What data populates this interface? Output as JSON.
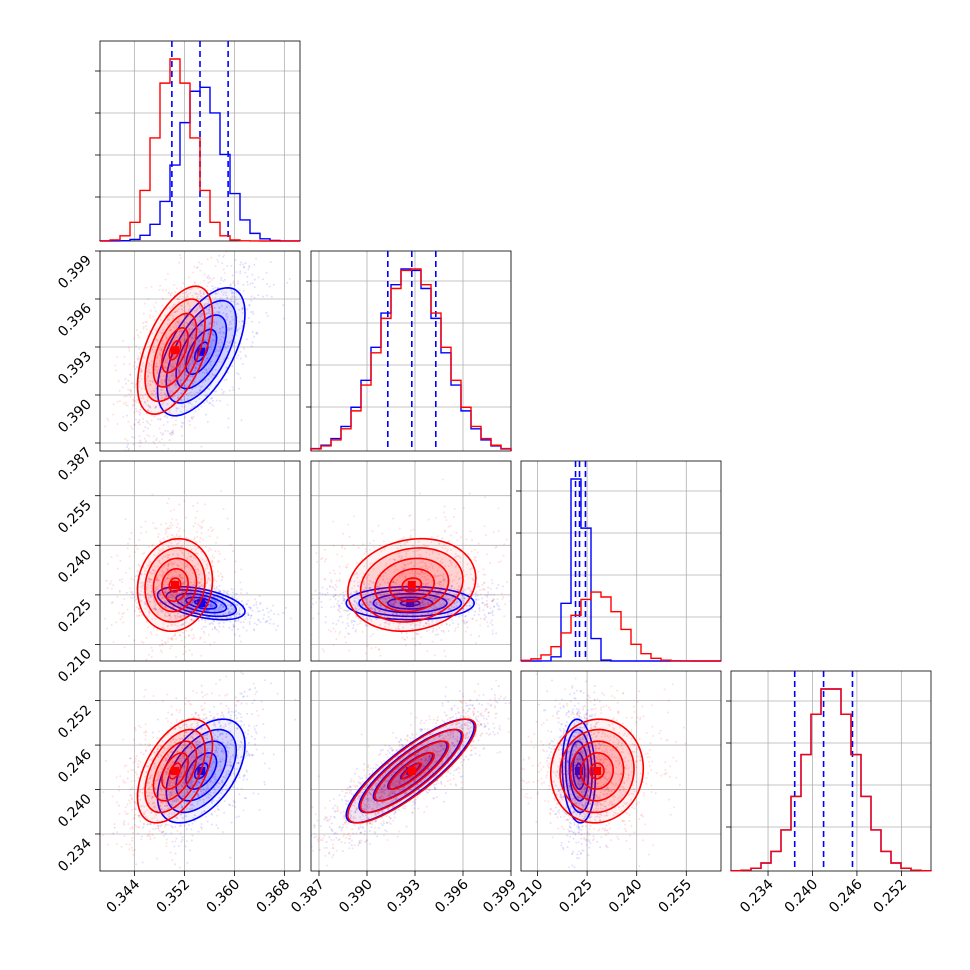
{
  "chart_data": {
    "type": "corner",
    "grid": true,
    "colors": {
      "series_a": "#0000ff",
      "series_b": "#ff0000",
      "quantile_line": "#0000ff"
    },
    "params": [
      {
        "ticks": [
          0.344,
          0.352,
          0.36,
          0.368
        ],
        "tick_labels": [
          "0.344",
          "0.352",
          "0.360",
          "0.368"
        ],
        "range": [
          0.3385,
          0.3705
        ]
      },
      {
        "ticks": [
          0.387,
          0.39,
          0.393,
          0.396,
          0.399
        ],
        "tick_labels": [
          "0.387",
          "0.390",
          "0.393",
          "0.396",
          "0.399"
        ],
        "range": [
          0.3865,
          0.399
        ]
      },
      {
        "ticks": [
          0.21,
          0.225,
          0.24,
          0.255
        ],
        "tick_labels": [
          "0.210",
          "0.225",
          "0.240",
          "0.255"
        ],
        "range": [
          0.205,
          0.2655
        ]
      },
      {
        "ticks": [
          0.234,
          0.24,
          0.246,
          0.252
        ],
        "tick_labels": [
          "0.234",
          "0.240",
          "0.246",
          "0.252"
        ],
        "range": [
          0.229,
          0.256
        ]
      }
    ],
    "series": [
      {
        "color": "#0000ff",
        "means": [
          0.3547,
          0.3927,
          0.2225,
          0.2425
        ],
        "sds": [
          0.0035,
          0.002,
          0.0025,
          0.0035
        ],
        "correlations": [
          [
            1,
            0.6,
            -0.5,
            0.5
          ],
          [
            0.6,
            1,
            0.0,
            0.85
          ],
          [
            -0.5,
            0.0,
            1,
            -0.1
          ],
          [
            0.5,
            0.85,
            -0.1,
            1
          ]
        ],
        "quantiles": [
          [
            0.35,
            0.3545,
            0.359
          ],
          [
            0.3913,
            0.3928,
            0.3943
          ],
          [
            0.2215,
            0.2227,
            0.2245
          ],
          [
            0.2376,
            0.2415,
            0.2454
          ]
        ]
      },
      {
        "color": "#ff0000",
        "means": [
          0.3505,
          0.3928,
          0.228,
          0.2425
        ],
        "sds": [
          0.003,
          0.002,
          0.007,
          0.0035
        ],
        "correlations": [
          [
            1,
            0.55,
            0.1,
            0.5
          ],
          [
            0.55,
            1,
            0.15,
            0.85
          ],
          [
            0.1,
            0.15,
            1,
            0.05
          ],
          [
            0.5,
            0.85,
            0.05,
            1
          ]
        ],
        "quantiles": [
          null,
          null,
          null,
          null
        ]
      }
    ]
  }
}
